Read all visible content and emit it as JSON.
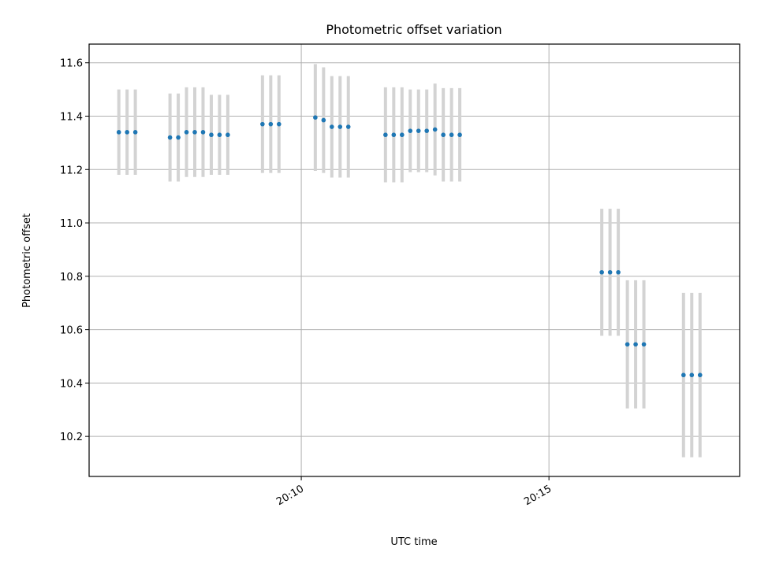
{
  "chart_data": {
    "type": "scatter",
    "title": "Photometric offset variation",
    "xlabel": "UTC time",
    "ylabel": "Photometric offset",
    "x_unit": "UTC time of day",
    "xlim": [
      "20:05:43",
      "20:18:51"
    ],
    "ylim": [
      10.05,
      11.67
    ],
    "x_ticks": [
      "20:10",
      "20:15"
    ],
    "y_ticks": [
      10.2,
      10.4,
      10.6,
      10.8,
      11.0,
      11.2,
      11.4,
      11.6
    ],
    "grid": true,
    "series": [
      {
        "marker_color": "#1f77b4",
        "errorbar_color": "#d3d3d3",
        "points": [
          {
            "x": "20:06:19",
            "y": 11.34,
            "err": 0.16
          },
          {
            "x": "20:06:29",
            "y": 11.34,
            "err": 0.16
          },
          {
            "x": "20:06:39",
            "y": 11.34,
            "err": 0.16
          },
          {
            "x": "20:07:21",
            "y": 11.32,
            "err": 0.165
          },
          {
            "x": "20:07:31",
            "y": 11.32,
            "err": 0.165
          },
          {
            "x": "20:07:41",
            "y": 11.34,
            "err": 0.168
          },
          {
            "x": "20:07:51",
            "y": 11.34,
            "err": 0.168
          },
          {
            "x": "20:08:01",
            "y": 11.34,
            "err": 0.168
          },
          {
            "x": "20:08:11",
            "y": 11.33,
            "err": 0.15
          },
          {
            "x": "20:08:21",
            "y": 11.33,
            "err": 0.15
          },
          {
            "x": "20:08:31",
            "y": 11.33,
            "err": 0.15
          },
          {
            "x": "20:09:13",
            "y": 11.37,
            "err": 0.183
          },
          {
            "x": "20:09:23",
            "y": 11.37,
            "err": 0.183
          },
          {
            "x": "20:09:33",
            "y": 11.37,
            "err": 0.183
          },
          {
            "x": "20:10:17",
            "y": 11.395,
            "err": 0.2
          },
          {
            "x": "20:10:27",
            "y": 11.385,
            "err": 0.198
          },
          {
            "x": "20:10:37",
            "y": 11.36,
            "err": 0.19
          },
          {
            "x": "20:10:47",
            "y": 11.36,
            "err": 0.19
          },
          {
            "x": "20:10:57",
            "y": 11.36,
            "err": 0.19
          },
          {
            "x": "20:11:42",
            "y": 11.33,
            "err": 0.178
          },
          {
            "x": "20:11:52",
            "y": 11.33,
            "err": 0.178
          },
          {
            "x": "20:12:02",
            "y": 11.33,
            "err": 0.178
          },
          {
            "x": "20:12:12",
            "y": 11.345,
            "err": 0.155
          },
          {
            "x": "20:12:22",
            "y": 11.345,
            "err": 0.155
          },
          {
            "x": "20:12:32",
            "y": 11.345,
            "err": 0.155
          },
          {
            "x": "20:12:42",
            "y": 11.35,
            "err": 0.172
          },
          {
            "x": "20:12:52",
            "y": 11.33,
            "err": 0.175
          },
          {
            "x": "20:13:02",
            "y": 11.33,
            "err": 0.175
          },
          {
            "x": "20:13:12",
            "y": 11.33,
            "err": 0.175
          },
          {
            "x": "20:16:04",
            "y": 10.815,
            "err": 0.238
          },
          {
            "x": "20:16:14",
            "y": 10.815,
            "err": 0.238
          },
          {
            "x": "20:16:24",
            "y": 10.815,
            "err": 0.238
          },
          {
            "x": "20:16:35",
            "y": 10.545,
            "err": 0.24
          },
          {
            "x": "20:16:45",
            "y": 10.545,
            "err": 0.24
          },
          {
            "x": "20:16:55",
            "y": 10.545,
            "err": 0.24
          },
          {
            "x": "20:17:43",
            "y": 10.43,
            "err": 0.308
          },
          {
            "x": "20:17:53",
            "y": 10.43,
            "err": 0.308
          },
          {
            "x": "20:18:03",
            "y": 10.43,
            "err": 0.308
          }
        ]
      }
    ]
  }
}
